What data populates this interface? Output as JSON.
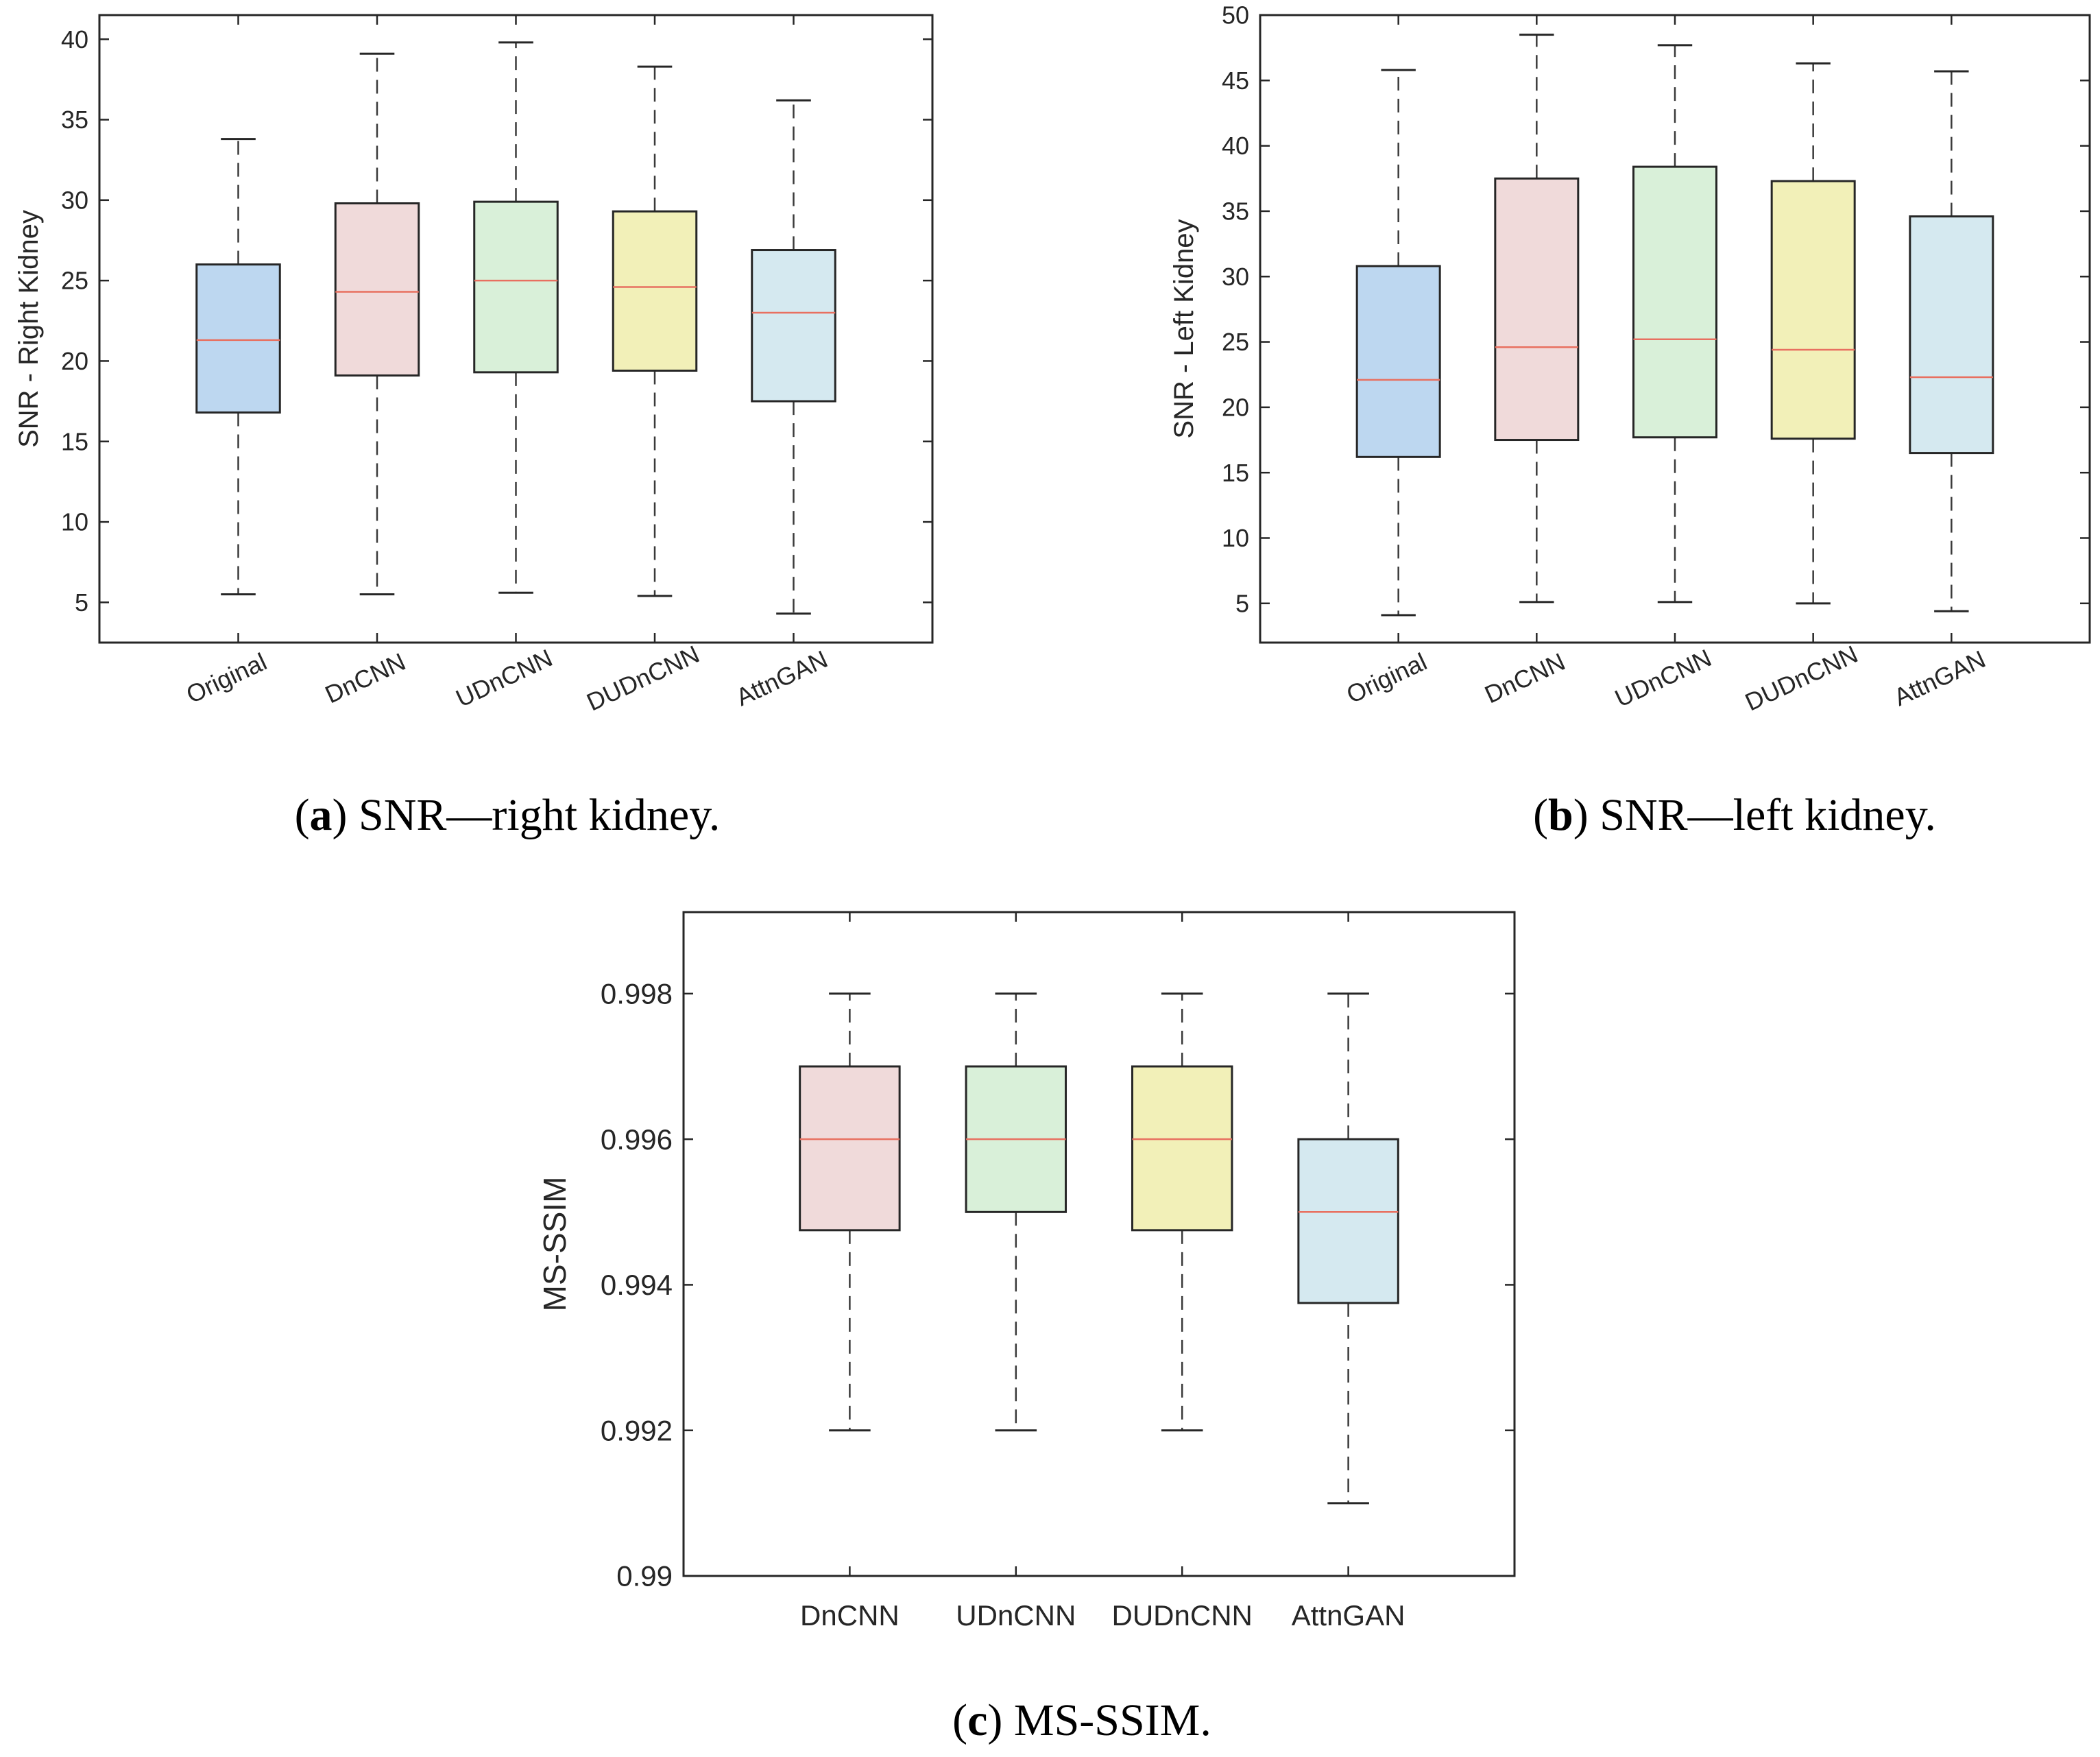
{
  "chart_data": [
    {
      "type": "box",
      "id": "a",
      "caption_letter": "a",
      "caption_text": ") SNR—right kidney.",
      "caption_open": "(",
      "ylabel": "SNR - Right Kidney",
      "ylim": [
        2.5,
        41.5
      ],
      "yticks": [
        5,
        10,
        15,
        20,
        25,
        30,
        35,
        40
      ],
      "ytick_labels": [
        "5",
        "10",
        "15",
        "20",
        "25",
        "30",
        "35",
        "40"
      ],
      "categories": [
        "Original",
        "DnCNN",
        "UDnCNN",
        "DUDnCNN",
        "AttnGAN"
      ],
      "xtick_rotation": -25,
      "colors": [
        "#bdd7f0",
        "#f0dada",
        "#d9f0d9",
        "#f2f0b8",
        "#d5e9f0"
      ],
      "median_color": "#e87060",
      "boxes": [
        {
          "min": 5.5,
          "q1": 16.8,
          "median": 21.3,
          "q3": 26.0,
          "max": 33.8
        },
        {
          "min": 5.5,
          "q1": 19.1,
          "median": 24.3,
          "q3": 29.8,
          "max": 39.1
        },
        {
          "min": 5.6,
          "q1": 19.3,
          "median": 25.0,
          "q3": 29.9,
          "max": 39.8
        },
        {
          "min": 5.4,
          "q1": 19.4,
          "median": 24.6,
          "q3": 29.3,
          "max": 38.3
        },
        {
          "min": 4.3,
          "q1": 17.5,
          "median": 23.0,
          "q3": 26.9,
          "max": 36.2
        }
      ]
    },
    {
      "type": "box",
      "id": "b",
      "caption_letter": "b",
      "caption_text": ") SNR—left kidney.",
      "caption_open": "(",
      "ylabel": "SNR - Left Kidney",
      "ylim": [
        2.0,
        50.0
      ],
      "yticks": [
        5,
        10,
        15,
        20,
        25,
        30,
        35,
        40,
        45,
        50
      ],
      "ytick_labels": [
        "5",
        "10",
        "15",
        "20",
        "25",
        "30",
        "35",
        "40",
        "45",
        "50"
      ],
      "categories": [
        "Original",
        "DnCNN",
        "UDnCNN",
        "DUDnCNN",
        "AttnGAN"
      ],
      "xtick_rotation": -25,
      "colors": [
        "#bdd7f0",
        "#f0dada",
        "#d9f0d9",
        "#f2f0b8",
        "#d5e9f0"
      ],
      "median_color": "#e87060",
      "boxes": [
        {
          "min": 4.1,
          "q1": 16.2,
          "median": 22.1,
          "q3": 30.8,
          "max": 45.8
        },
        {
          "min": 5.1,
          "q1": 17.5,
          "median": 24.6,
          "q3": 37.5,
          "max": 48.5
        },
        {
          "min": 5.1,
          "q1": 17.7,
          "median": 25.2,
          "q3": 38.4,
          "max": 47.7
        },
        {
          "min": 5.0,
          "q1": 17.6,
          "median": 24.4,
          "q3": 37.3,
          "max": 46.3
        },
        {
          "min": 4.4,
          "q1": 16.5,
          "median": 22.3,
          "q3": 34.6,
          "max": 45.7
        }
      ]
    },
    {
      "type": "box",
      "id": "c",
      "caption_letter": "c",
      "caption_text": ") MS-SSIM.",
      "caption_open": "(",
      "ylabel": "MS-SSIM",
      "ylim": [
        0.99,
        0.99912
      ],
      "yticks": [
        0.99,
        0.992,
        0.994,
        0.996,
        0.998
      ],
      "ytick_labels": [
        "0.99",
        "0.992",
        "0.994",
        "0.996",
        "0.998"
      ],
      "categories": [
        "DnCNN",
        "UDnCNN",
        "DUDnCNN",
        "AttnGAN"
      ],
      "xtick_rotation": 0,
      "colors": [
        "#f0dada",
        "#d9f0d9",
        "#f2f0b8",
        "#d5e9f0"
      ],
      "median_color": "#e87060",
      "boxes": [
        {
          "min": 0.992,
          "q1": 0.99475,
          "median": 0.996,
          "q3": 0.997,
          "max": 0.998
        },
        {
          "min": 0.992,
          "q1": 0.995,
          "median": 0.996,
          "q3": 0.997,
          "max": 0.998
        },
        {
          "min": 0.992,
          "q1": 0.99475,
          "median": 0.996,
          "q3": 0.997,
          "max": 0.998
        },
        {
          "min": 0.991,
          "q1": 0.99375,
          "median": 0.995,
          "q3": 0.996,
          "max": 0.998
        }
      ]
    }
  ]
}
